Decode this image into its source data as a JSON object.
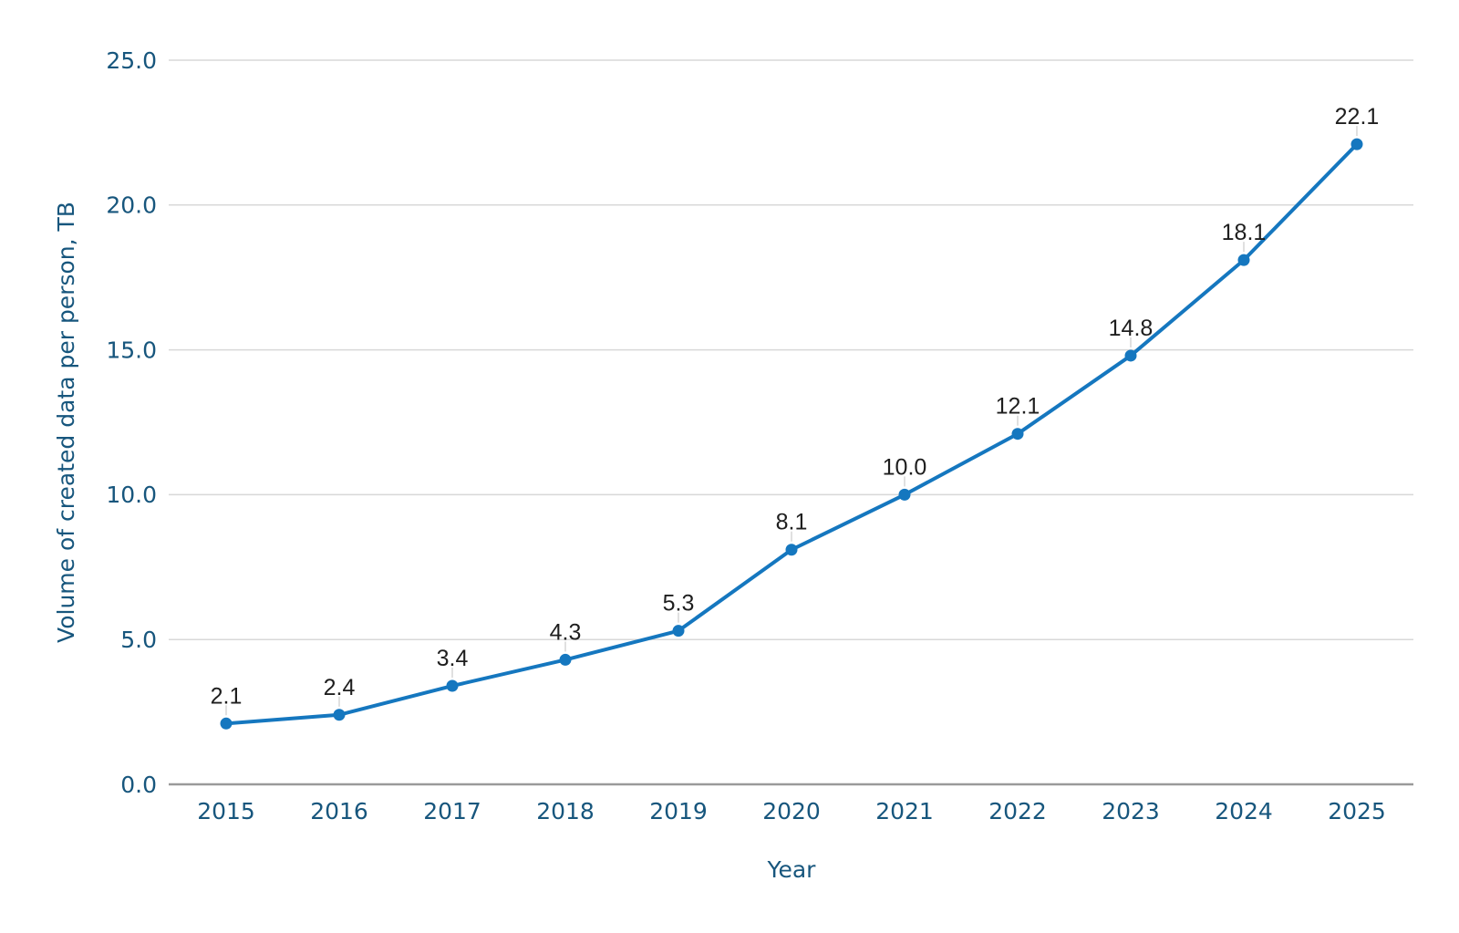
{
  "chart_data": {
    "type": "line",
    "title": "",
    "xlabel": "Year",
    "ylabel": "Volume of created data per person, TB",
    "categories": [
      "2015",
      "2016",
      "2017",
      "2018",
      "2019",
      "2020",
      "2021",
      "2022",
      "2023",
      "2024",
      "2025"
    ],
    "series": [
      {
        "name": "Volume of created data per person",
        "values": [
          2.1,
          2.4,
          3.4,
          4.3,
          5.3,
          8.1,
          10.0,
          12.1,
          14.8,
          18.1,
          22.1
        ],
        "point_labels": [
          "2.1",
          "2.4",
          "3.4",
          "4.3",
          "5.3",
          "8.1",
          "10.0",
          "12.1",
          "14.8",
          "18.1",
          "22.1"
        ]
      }
    ],
    "y_ticks": [
      {
        "value": 0,
        "label": "0.0"
      },
      {
        "value": 5,
        "label": "5.0"
      },
      {
        "value": 10,
        "label": "10.0"
      },
      {
        "value": 15,
        "label": "15.0"
      },
      {
        "value": 20,
        "label": "20.0"
      },
      {
        "value": 25,
        "label": "25.0"
      }
    ],
    "ylim": [
      0,
      25
    ],
    "grid": "horizontal",
    "legend": "none",
    "markers": "filled-circle",
    "data_labels_position": "above-with-leader-line",
    "colors": {
      "background": "#ffffff",
      "line": "#1577bf",
      "point": "#1577bf",
      "tick_text": "#17567d",
      "axis_title_text": "#17567d",
      "data_label_text": "#1e1e1e",
      "gridline": "#d8d8d8",
      "axis_line": "#9a9a9a",
      "leader_line": "#e0e0e0"
    }
  }
}
